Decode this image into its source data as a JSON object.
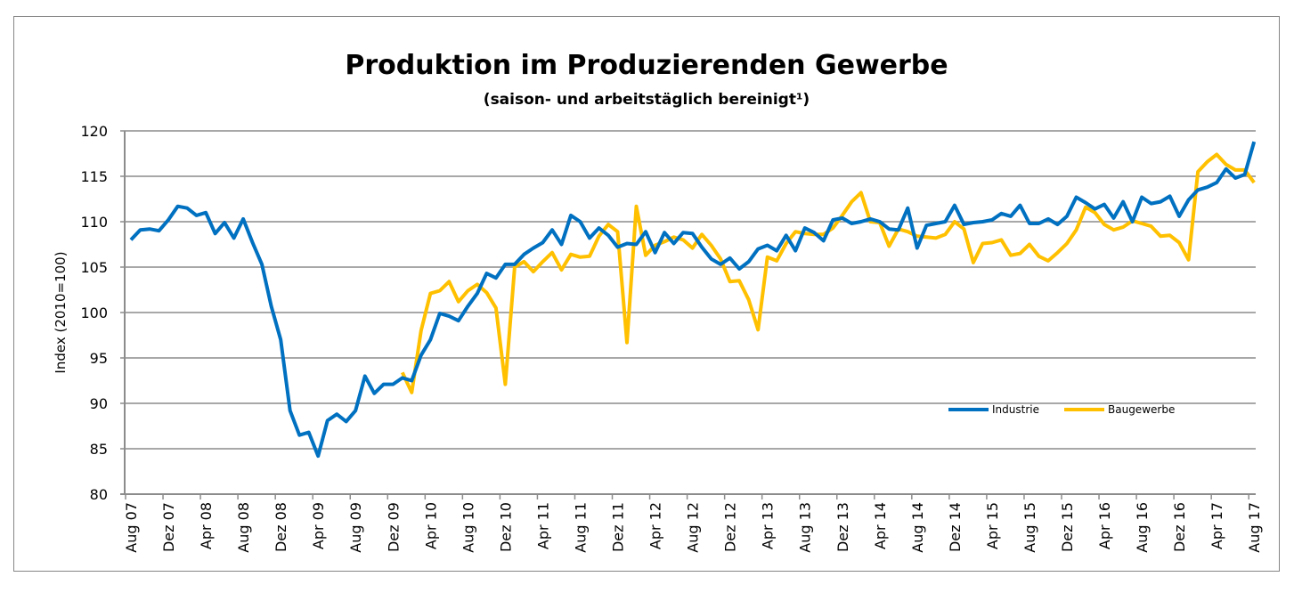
{
  "chart_data": {
    "type": "line",
    "title": "Produktion im Produzierenden Gewerbe",
    "subtitle": "(saison- und arbeitstäglich bereinigt¹)",
    "ylabel": "Index (2010=100)",
    "xlabel": "",
    "ylim": [
      80,
      120
    ],
    "yticks": [
      80,
      85,
      90,
      95,
      100,
      105,
      110,
      115,
      120
    ],
    "grid": "horizontal",
    "legend_position": "bottom-right inside",
    "x_start": "Aug 07",
    "x_end": "Aug 17",
    "x_tick_labels": [
      "Aug 07",
      "Dez 07",
      "Apr 08",
      "Aug 08",
      "Dez 08",
      "Apr 09",
      "Aug 09",
      "Dez 09",
      "Apr 10",
      "Aug 10",
      "Dez 10",
      "Apr 11",
      "Aug 11",
      "Dez 11",
      "Apr 12",
      "Aug 12",
      "Dez 12",
      "Apr 13",
      "Aug 13",
      "Dez 13",
      "Apr 14",
      "Aug 14",
      "Dez 14",
      "Apr 15",
      "Aug 15",
      "Dez 15",
      "Apr 16",
      "Aug 16",
      "Dez 16",
      "Apr 17",
      "Aug 17"
    ],
    "series": [
      {
        "name": "Industrie",
        "color": "#0070C0",
        "start": "Aug 07",
        "values": [
          108,
          109.1,
          109.2,
          109,
          110.2,
          111.7,
          111.5,
          110.7,
          111,
          108.7,
          109.9,
          108.2,
          110.3,
          107.7,
          105.3,
          100.7,
          97,
          89.2,
          86.5,
          86.8,
          84.2,
          88.1,
          88.8,
          88,
          89.2,
          93,
          91.1,
          92.1,
          92.1,
          92.8,
          92.5,
          95.3,
          97,
          99.9,
          99.6,
          99.1,
          100.7,
          102.1,
          104.3,
          103.8,
          105.3,
          105.3,
          106.4,
          107.1,
          107.7,
          109.1,
          107.5,
          110.7,
          110,
          108.2,
          109.3,
          108.5,
          107.2,
          107.6,
          107.5,
          108.9,
          106.6,
          108.8,
          107.6,
          108.8,
          108.7,
          107.2,
          105.9,
          105.3,
          106,
          104.8,
          105.6,
          107,
          107.4,
          106.8,
          108.5,
          106.8,
          109.3,
          108.8,
          107.9,
          110.2,
          110.4,
          109.8,
          110,
          110.3,
          110,
          109.2,
          109.1,
          111.5,
          107.1,
          109.6,
          109.8,
          110,
          111.8,
          109.7,
          109.9,
          110,
          110.2,
          110.9,
          110.6,
          111.8,
          109.8,
          109.8,
          110.3,
          109.7,
          110.6,
          112.7,
          112.1,
          111.4,
          111.9,
          110.4,
          112.2,
          110,
          112.7,
          112,
          112.2,
          112.8,
          110.6,
          112.4,
          113.5,
          113.8,
          114.3,
          115.8,
          114.8,
          115.2,
          118.8
        ]
      },
      {
        "name": "Baugewerbe",
        "color": "#FFC000",
        "start": "Jan 10",
        "values": [
          93.4,
          91.2,
          98,
          102.1,
          102.4,
          103.4,
          101.2,
          102.4,
          103.1,
          102.2,
          100.5,
          92.1,
          105,
          105.6,
          104.5,
          105.6,
          106.6,
          104.7,
          106.4,
          106.1,
          106.2,
          108.4,
          109.7,
          108.9,
          96.7,
          111.7,
          106.3,
          107.4,
          107.8,
          108.3,
          108,
          107.1,
          108.6,
          107.4,
          105.9,
          103.4,
          103.5,
          101.4,
          98.1,
          106.1,
          105.7,
          107.6,
          108.9,
          108.7,
          108.6,
          108.6,
          109.3,
          110.7,
          112.2,
          113.2,
          110,
          109.9,
          107.3,
          109.2,
          108.9,
          108.4,
          108.3,
          108.2,
          108.6,
          110,
          109.2,
          105.5,
          107.6,
          107.7,
          108,
          106.3,
          106.5,
          107.5,
          106.2,
          105.7,
          106.6,
          107.6,
          109.1,
          111.6,
          111,
          109.7,
          109.1,
          109.4,
          110.1,
          109.8,
          109.5,
          108.4,
          108.5,
          107.7,
          105.8,
          115.5,
          116.6,
          117.4,
          116.3,
          115.7,
          115.7,
          114.3
        ]
      }
    ]
  }
}
